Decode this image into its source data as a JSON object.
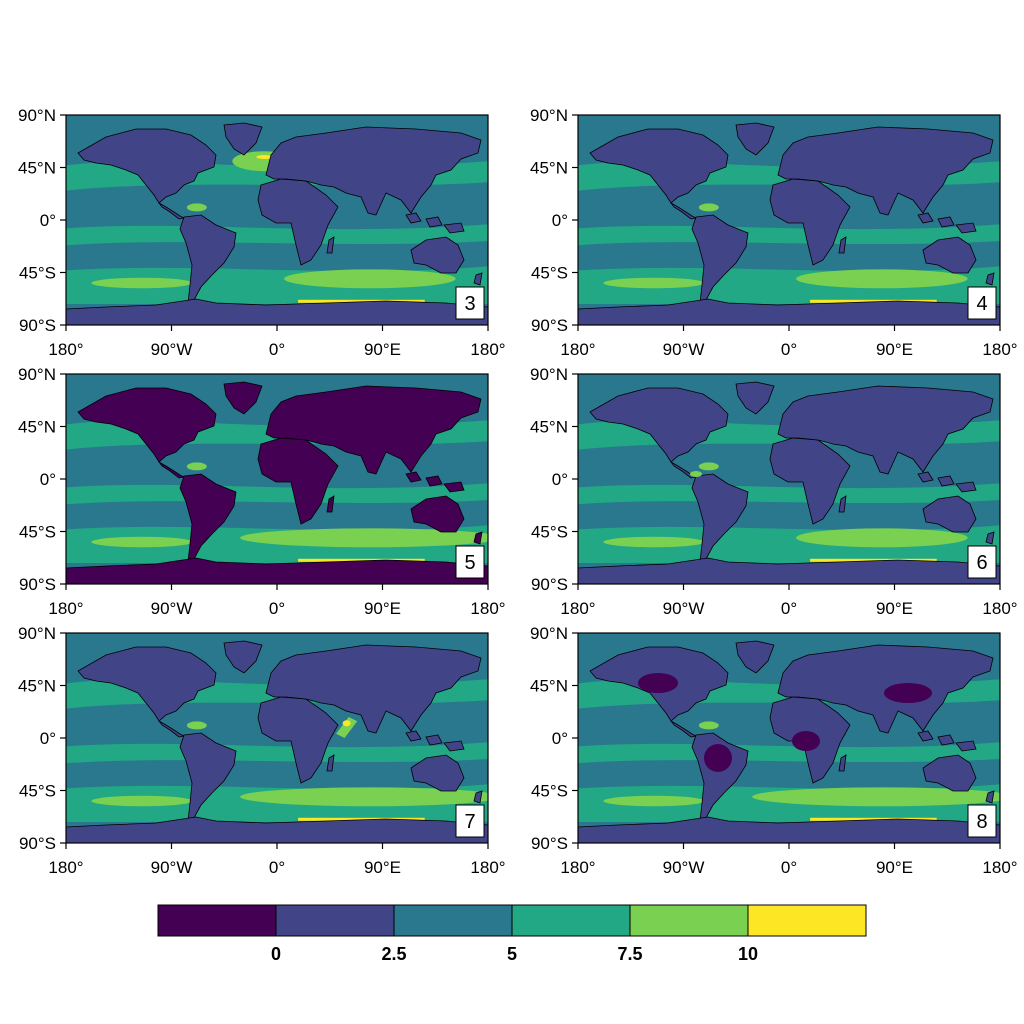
{
  "map_data": {
    "type": "multi-panel global map",
    "projection": "cylindrical equidistant",
    "panels": [
      {
        "label": "3"
      },
      {
        "label": "4"
      },
      {
        "label": "5"
      },
      {
        "label": "6"
      },
      {
        "label": "7"
      },
      {
        "label": "8"
      }
    ],
    "lat_ticks": [
      "90°N",
      "45°N",
      "0°",
      "45°S",
      "90°S"
    ],
    "lon_ticks": [
      "180°",
      "90°W",
      "0°",
      "90°E",
      "180°"
    ],
    "colorbar": {
      "levels": [
        "0",
        "2.5",
        "5",
        "7.5",
        "10"
      ],
      "colors": [
        "#440154",
        "#414487",
        "#2a788e",
        "#22a884",
        "#7ad151",
        "#fde725"
      ]
    },
    "coastline_color": "#000000"
  }
}
